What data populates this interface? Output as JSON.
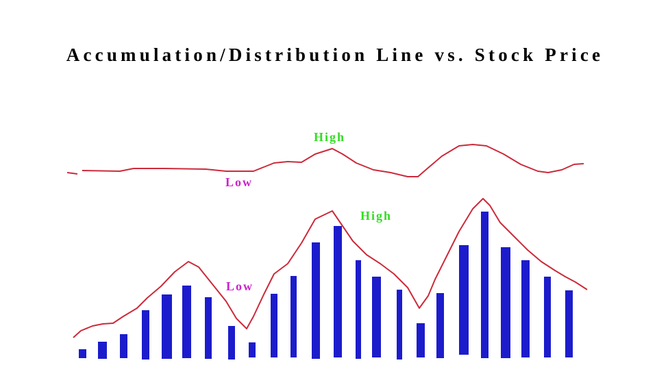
{
  "title": "Accumulation/Distribution Line vs. Stock Price",
  "top_panel": {
    "high_label": "High",
    "low_label": "Low"
  },
  "bottom_panel": {
    "high_label": "High",
    "low_label": "Low"
  }
}
